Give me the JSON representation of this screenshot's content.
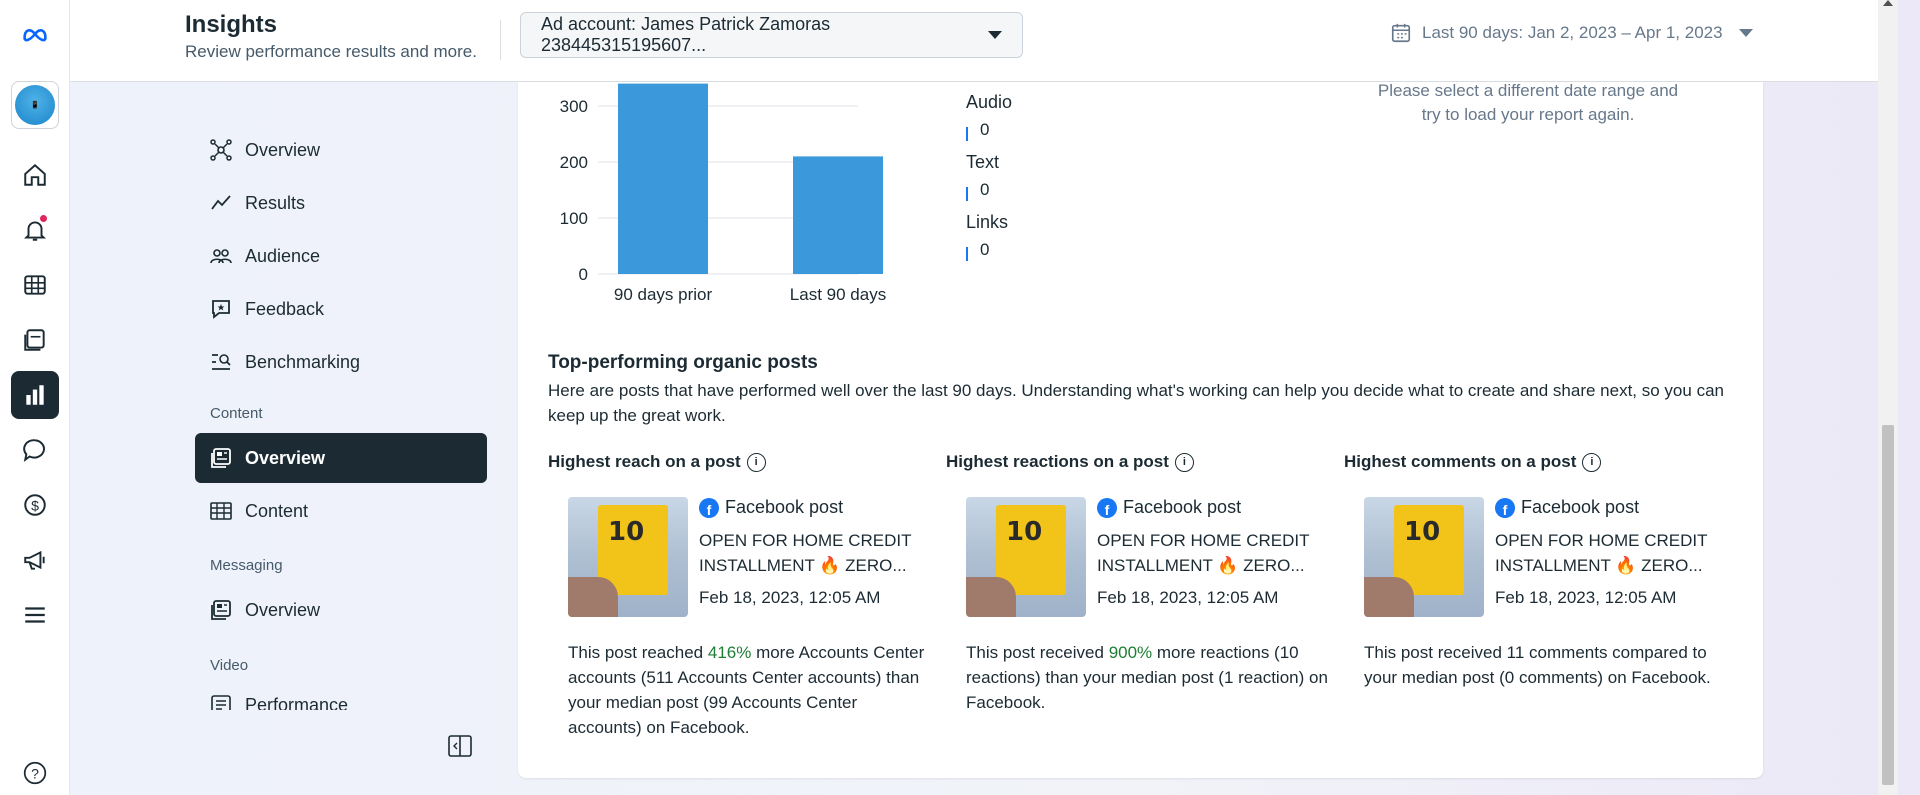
{
  "header": {
    "title": "Insights",
    "subtitle": "Review performance results and more.",
    "account_label": "Ad account: James Patrick Zamoras 238445315195607...",
    "date_range": "Last 90 days: Jan 2, 2023 – Apr 1, 2023"
  },
  "rail": {
    "icons": [
      "meta-logo-icon",
      "avatar",
      "home-icon",
      "bell-icon",
      "grid-icon",
      "pages-icon",
      "insights-icon",
      "chat-icon",
      "dollar-icon",
      "megaphone-icon",
      "menu-icon",
      "help-icon"
    ]
  },
  "nav": {
    "items": [
      {
        "label": "Overview"
      },
      {
        "label": "Results"
      },
      {
        "label": "Audience"
      },
      {
        "label": "Feedback"
      },
      {
        "label": "Benchmarking"
      }
    ],
    "content_section": "Content",
    "content_items": [
      {
        "label": "Overview"
      },
      {
        "label": "Content"
      }
    ],
    "messaging_section": "Messaging",
    "messaging_items": [
      {
        "label": "Overview"
      }
    ],
    "video_section": "Video",
    "video_items": [
      {
        "label": "Performance"
      }
    ]
  },
  "chart_data": {
    "type": "bar",
    "categories": [
      "90 days prior",
      "Last 90 days"
    ],
    "values": [
      340,
      210
    ],
    "yticks": [
      "0",
      "100",
      "200",
      "300"
    ],
    "ylim": [
      0,
      340
    ],
    "bar_color": "#3b99db",
    "legend": [
      {
        "label": "Audio",
        "value": "0"
      },
      {
        "label": "Text",
        "value": "0"
      },
      {
        "label": "Links",
        "value": "0"
      }
    ]
  },
  "error_msg": "Please select a different date range and try to load your report again.",
  "top_posts": {
    "title": "Top-performing organic posts",
    "description": "Here are posts that have performed well over the last 90 days. Understanding what's working can help you decide what to create and share next, so you can keep up the great work.",
    "columns": [
      {
        "title": "Highest reach on a post",
        "post_type": "Facebook post",
        "post_text": "OPEN FOR HOME CREDIT INSTALLMENT 🔥 ZERO...",
        "date": "Feb 18, 2023, 12:05 AM",
        "summary_pre": "This post reached ",
        "summary_pct": "416%",
        "summary_post": " more Accounts Center accounts (511 Accounts Center accounts) than your median post (99 Accounts Center accounts) on Facebook."
      },
      {
        "title": "Highest reactions on a post",
        "post_type": "Facebook post",
        "post_text": "OPEN FOR HOME CREDIT INSTALLMENT 🔥 ZERO...",
        "date": "Feb 18, 2023, 12:05 AM",
        "summary_pre": "This post received ",
        "summary_pct": "900%",
        "summary_post": " more reactions (10 reactions) than your median post (1 reaction) on Facebook."
      },
      {
        "title": "Highest comments on a post",
        "post_type": "Facebook post",
        "post_text": "OPEN FOR HOME CREDIT INSTALLMENT 🔥 ZERO...",
        "date": "Feb 18, 2023, 12:05 AM",
        "summary_pre": "This post received 11 comments compared to your median post (0 comments) on Facebook.",
        "summary_pct": "",
        "summary_post": ""
      }
    ],
    "thumb_number": "10"
  }
}
